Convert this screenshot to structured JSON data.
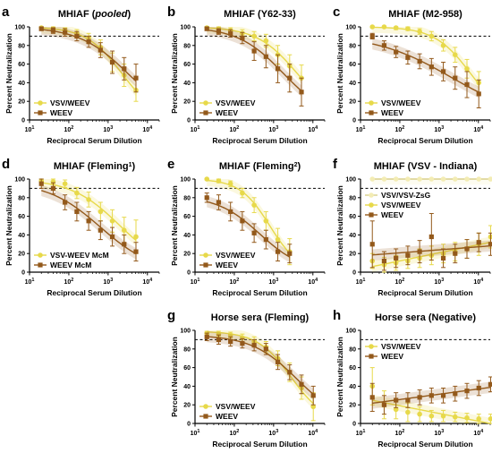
{
  "colors": {
    "vsv_weev": "#e7d94a",
    "weev": "#93591b",
    "vsv_zsg": "#f3ecb4"
  },
  "chart_data": [
    {
      "id": "a",
      "letter": "a",
      "type": "line",
      "title": "MHIAF (pooled)",
      "title_parts": [
        {
          "t": "MHIAF ("
        },
        {
          "t": "pooled",
          "it": true
        },
        {
          "t": ")"
        }
      ],
      "xlabel": "Reciprocal Serum Dilution",
      "ylabel": "Percent Neutralization",
      "xscale": "log",
      "xlim": [
        10,
        20000
      ],
      "ylim": [
        0,
        100
      ],
      "threshold": 90,
      "legend_position": "bottom-left",
      "series": [
        {
          "name": "VSV/WEEV",
          "color": "vsv_weev",
          "x": [
            20,
            40,
            80,
            160,
            320,
            640,
            1280,
            2560,
            5120
          ],
          "y": [
            99,
            98,
            96,
            93,
            88,
            78,
            62,
            48,
            32
          ],
          "err": [
            1,
            2,
            3,
            4,
            5,
            8,
            10,
            12,
            12
          ]
        },
        {
          "name": "WEEV",
          "color": "weev",
          "x": [
            20,
            40,
            80,
            160,
            320,
            640,
            1280,
            2560,
            5120
          ],
          "y": [
            98,
            96,
            94,
            90,
            84,
            75,
            62,
            55,
            45
          ],
          "err": [
            2,
            3,
            4,
            5,
            6,
            8,
            12,
            12,
            15
          ]
        }
      ]
    },
    {
      "id": "b",
      "letter": "b",
      "type": "line",
      "title": "MHIAF (Y62-33)",
      "title_parts": [
        {
          "t": "MHIAF (Y62-33)"
        }
      ],
      "xlabel": "Reciprocal Serum Dilution",
      "ylabel": "Percent Neutralization",
      "xscale": "log",
      "xlim": [
        10,
        20000
      ],
      "ylim": [
        0,
        100
      ],
      "threshold": 90,
      "legend_position": "bottom-left",
      "series": [
        {
          "name": "VSV/WEEV",
          "color": "vsv_weev",
          "x": [
            20,
            40,
            80,
            160,
            320,
            640,
            1280,
            2560,
            5120
          ],
          "y": [
            99,
            98,
            96,
            93,
            90,
            85,
            70,
            58,
            45
          ],
          "err": [
            1,
            2,
            3,
            4,
            5,
            7,
            10,
            12,
            14
          ]
        },
        {
          "name": "WEEV",
          "color": "weev",
          "x": [
            20,
            40,
            80,
            160,
            320,
            640,
            1280,
            2560,
            5120
          ],
          "y": [
            98,
            95,
            93,
            88,
            74,
            68,
            55,
            45,
            30
          ],
          "err": [
            2,
            3,
            4,
            6,
            10,
            12,
            15,
            15,
            15
          ]
        }
      ]
    },
    {
      "id": "c",
      "letter": "c",
      "type": "line",
      "title": "MHIAF (M2-958)",
      "title_parts": [
        {
          "t": "MHIAF (M2-958)"
        }
      ],
      "xlabel": "Reciprocal Serum Dilution",
      "ylabel": "Percent Neutralization",
      "xscale": "log",
      "xlim": [
        10,
        20000
      ],
      "ylim": [
        0,
        100
      ],
      "threshold": 90,
      "legend_position": "bottom-left",
      "series": [
        {
          "name": "VSV/WEEV",
          "color": "vsv_weev",
          "x": [
            20,
            40,
            80,
            160,
            320,
            640,
            1280,
            2560,
            5120,
            10240
          ],
          "y": [
            100,
            100,
            99,
            98,
            95,
            90,
            80,
            70,
            55,
            40
          ],
          "err": [
            1,
            1,
            2,
            2,
            3,
            5,
            6,
            8,
            10,
            12
          ]
        },
        {
          "name": "WEEV",
          "color": "weev",
          "x": [
            20,
            40,
            80,
            160,
            320,
            640,
            1280,
            2560,
            5120,
            10240
          ],
          "y": [
            90,
            80,
            73,
            67,
            63,
            57,
            52,
            45,
            38,
            28
          ],
          "err": [
            3,
            5,
            6,
            7,
            8,
            9,
            10,
            12,
            14,
            15
          ]
        }
      ]
    },
    {
      "id": "d",
      "letter": "d",
      "type": "line",
      "title": "MHIAF (Fleming1)",
      "title_parts": [
        {
          "t": "MHIAF (Fleming"
        },
        {
          "t": "1",
          "sup": true
        },
        {
          "t": ")"
        }
      ],
      "xlabel": "Reciprocal Serum Dilution",
      "ylabel": "Percent Neutralization",
      "xscale": "log",
      "xlim": [
        10,
        20000
      ],
      "ylim": [
        0,
        100
      ],
      "threshold": 90,
      "legend_position": "bottom-left",
      "series": [
        {
          "name": "VSV-WEEV McM",
          "color": "vsv_weev",
          "x": [
            20,
            40,
            80,
            160,
            320,
            640,
            1280,
            2560,
            5120
          ],
          "y": [
            98,
            97,
            95,
            85,
            78,
            65,
            55,
            45,
            38
          ],
          "err": [
            2,
            3,
            4,
            6,
            8,
            10,
            12,
            14,
            18
          ]
        },
        {
          "name": "WEEV McM",
          "color": "weev",
          "x": [
            20,
            40,
            80,
            160,
            320,
            640,
            1280,
            2560,
            5120
          ],
          "y": [
            95,
            90,
            75,
            65,
            55,
            45,
            38,
            30,
            22
          ],
          "err": [
            5,
            6,
            8,
            10,
            10,
            10,
            10,
            10,
            10
          ]
        }
      ]
    },
    {
      "id": "e",
      "letter": "e",
      "type": "line",
      "title": "MHIAF (Fleming2)",
      "title_parts": [
        {
          "t": "MHIAF (Fleming"
        },
        {
          "t": "2",
          "sup": true
        },
        {
          "t": ")"
        }
      ],
      "xlabel": "Reciprocal Serum Dilution",
      "ylabel": "Percent Neutralization",
      "xscale": "log",
      "xlim": [
        10,
        20000
      ],
      "ylim": [
        0,
        100
      ],
      "threshold": 90,
      "legend_position": "bottom-left",
      "series": [
        {
          "name": "VSV/WEEV",
          "color": "vsv_weev",
          "x": [
            20,
            40,
            80,
            160,
            320,
            640,
            1280,
            2560
          ],
          "y": [
            100,
            98,
            95,
            85,
            72,
            55,
            35,
            22
          ],
          "err": [
            1,
            2,
            3,
            5,
            8,
            10,
            12,
            14
          ]
        },
        {
          "name": "WEEV",
          "color": "weev",
          "x": [
            20,
            40,
            80,
            160,
            320,
            640,
            1280,
            2560
          ],
          "y": [
            80,
            75,
            65,
            55,
            42,
            35,
            22,
            20
          ],
          "err": [
            5,
            8,
            10,
            10,
            10,
            10,
            10,
            10
          ]
        }
      ]
    },
    {
      "id": "f",
      "letter": "f",
      "type": "line",
      "title": "MHIAF (VSV - Indiana)",
      "title_parts": [
        {
          "t": "MHIAF (VSV - Indiana)"
        }
      ],
      "xlabel": "Reciprocal Serum Dilution",
      "ylabel": "Percent Neutralization",
      "xscale": "log",
      "xlim": [
        10,
        20000
      ],
      "ylim": [
        0,
        100
      ],
      "threshold": 90,
      "legend_position": "top-left",
      "series": [
        {
          "name": "VSV/VSV-ZsG",
          "color": "vsv_zsg",
          "x": [
            20,
            40,
            80,
            160,
            320,
            640,
            1280,
            2560,
            5120,
            10240,
            20480
          ],
          "y": [
            100,
            100,
            100,
            100,
            100,
            100,
            100,
            100,
            100,
            100,
            100
          ],
          "err": [
            0,
            0,
            0,
            0,
            0,
            0,
            0,
            0,
            0,
            0,
            0
          ]
        },
        {
          "name": "VSV/WEEV",
          "color": "vsv_weev",
          "x": [
            20,
            40,
            80,
            160,
            320,
            640,
            1280,
            2560,
            5120,
            10240,
            20480
          ],
          "y": [
            12,
            8,
            10,
            12,
            15,
            18,
            20,
            22,
            25,
            30,
            38
          ],
          "err": [
            8,
            8,
            8,
            8,
            10,
            10,
            10,
            10,
            10,
            12,
            12
          ]
        },
        {
          "name": "WEEV",
          "color": "weev",
          "x": [
            20,
            40,
            80,
            160,
            320,
            640,
            1280,
            2560,
            5120,
            10240,
            20480
          ],
          "y": [
            30,
            12,
            15,
            18,
            22,
            38,
            15,
            20,
            25,
            32,
            30
          ],
          "err": [
            25,
            10,
            10,
            10,
            12,
            25,
            10,
            10,
            10,
            10,
            12
          ]
        }
      ]
    },
    {
      "id": "g",
      "letter": "g",
      "type": "line",
      "title": "Horse sera (Fleming)",
      "title_parts": [
        {
          "t": "Horse sera (Fleming)"
        }
      ],
      "xlabel": "Reciprocal Serum Dilution",
      "ylabel": "Percent Neutralization",
      "xscale": "log",
      "xlim": [
        10,
        20000
      ],
      "ylim": [
        0,
        100
      ],
      "threshold": 90,
      "legend_position": "bottom-left",
      "series": [
        {
          "name": "VSV/WEEV",
          "color": "vsv_weev",
          "x": [
            20,
            40,
            80,
            160,
            320,
            640,
            1280,
            2560,
            5120,
            10240
          ],
          "y": [
            97,
            96,
            95,
            92,
            88,
            82,
            70,
            55,
            38,
            18
          ],
          "err": [
            2,
            3,
            3,
            4,
            5,
            6,
            8,
            10,
            12,
            15
          ]
        },
        {
          "name": "WEEV",
          "color": "weev",
          "x": [
            20,
            40,
            80,
            160,
            320,
            640,
            1280,
            2560,
            5120,
            10240
          ],
          "y": [
            93,
            90,
            88,
            86,
            84,
            80,
            66,
            55,
            42,
            30
          ],
          "err": [
            4,
            5,
            5,
            5,
            6,
            6,
            8,
            8,
            10,
            10
          ]
        }
      ]
    },
    {
      "id": "h",
      "letter": "h",
      "type": "line",
      "title": "Horse sera (Negative)",
      "title_parts": [
        {
          "t": "Horse sera (Negative)"
        }
      ],
      "xlabel": "Reciprocal Serum Dilution",
      "ylabel": "Percent Neutralization",
      "xscale": "log",
      "xlim": [
        10,
        20000
      ],
      "ylim": [
        0,
        100
      ],
      "threshold": 90,
      "legend_position": "top-left",
      "series": [
        {
          "name": "VSV/WEEV",
          "color": "vsv_weev",
          "x": [
            20,
            40,
            80,
            160,
            320,
            640,
            1280,
            2560,
            5120,
            10240,
            20480
          ],
          "y": [
            40,
            20,
            15,
            12,
            10,
            8,
            8,
            7,
            6,
            5,
            5
          ],
          "err": [
            20,
            15,
            10,
            10,
            8,
            6,
            6,
            5,
            5,
            5,
            5
          ]
        },
        {
          "name": "WEEV",
          "color": "weev",
          "x": [
            20,
            40,
            80,
            160,
            320,
            640,
            1280,
            2560,
            5120,
            10240,
            20480
          ],
          "y": [
            28,
            20,
            25,
            25,
            28,
            30,
            30,
            32,
            35,
            38,
            42
          ],
          "err": [
            15,
            10,
            8,
            8,
            8,
            8,
            8,
            8,
            8,
            8,
            8
          ]
        }
      ]
    }
  ]
}
